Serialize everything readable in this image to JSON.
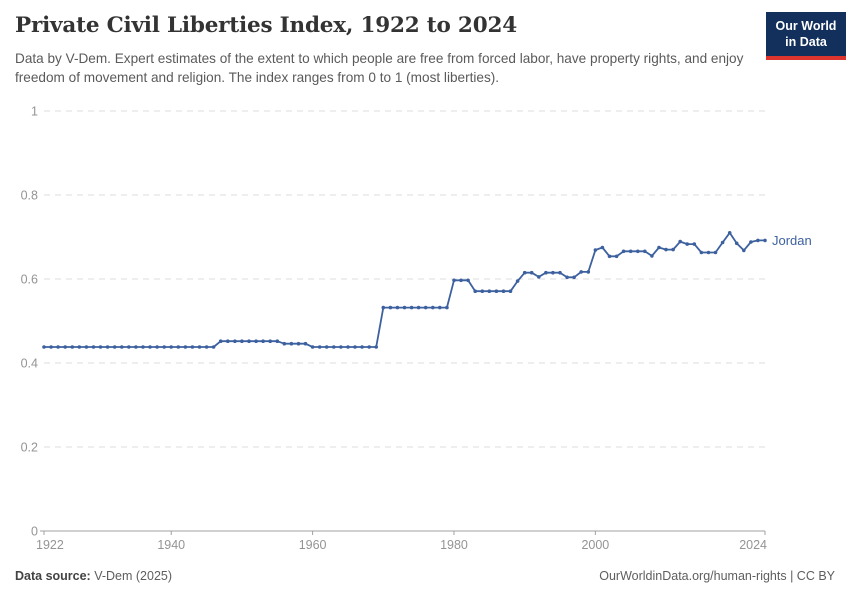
{
  "header": {
    "title": "Private Civil Liberties Index, 1922 to 2024",
    "subtitle": "Data by V-Dem. Expert estimates of the extent to which people are free from forced labor, have property rights, and enjoy freedom of movement and religion. The index ranges from 0 to 1 (most liberties).",
    "logo": {
      "line1": "Our World",
      "line2": "in Data"
    }
  },
  "footer": {
    "source_label": "Data source:",
    "source_value": " V-Dem (2025)",
    "right_text": "OurWorldinData.org/human-rights | CC BY"
  },
  "colors": {
    "series_blue": "#3d619f",
    "logo_navy": "#12305b",
    "logo_red": "#dd352e",
    "gridline": "#dedede",
    "axis": "#a0a0a0",
    "tick_label": "#949494",
    "title_text": "#333333",
    "subtitle_text": "#5a5a5a"
  },
  "chart_data": {
    "type": "line",
    "title": "Private Civil Liberties Index, 1922 to 2024",
    "xlabel": "",
    "ylabel": "",
    "entity_label": "Jordan",
    "legend_position": "end-of-line",
    "grid": "horizontal-dashed",
    "markers": true,
    "xlim": [
      1922,
      2024
    ],
    "ylim": [
      0,
      1
    ],
    "xticks": [
      1922,
      1940,
      1960,
      1980,
      2000,
      2024
    ],
    "yticks": [
      0,
      0.2,
      0.4,
      0.6,
      0.8,
      1
    ],
    "x": [
      1922,
      1923,
      1924,
      1925,
      1926,
      1927,
      1928,
      1929,
      1930,
      1931,
      1932,
      1933,
      1934,
      1935,
      1936,
      1937,
      1938,
      1939,
      1940,
      1941,
      1942,
      1943,
      1944,
      1945,
      1946,
      1947,
      1948,
      1949,
      1950,
      1951,
      1952,
      1953,
      1954,
      1955,
      1956,
      1957,
      1958,
      1959,
      1960,
      1961,
      1962,
      1963,
      1964,
      1965,
      1966,
      1967,
      1968,
      1969,
      1970,
      1971,
      1972,
      1973,
      1974,
      1975,
      1976,
      1977,
      1978,
      1979,
      1980,
      1981,
      1982,
      1983,
      1984,
      1985,
      1986,
      1987,
      1988,
      1989,
      1990,
      1991,
      1992,
      1993,
      1994,
      1995,
      1996,
      1997,
      1998,
      1999,
      2000,
      2001,
      2002,
      2003,
      2004,
      2005,
      2006,
      2007,
      2008,
      2009,
      2010,
      2011,
      2012,
      2013,
      2014,
      2015,
      2016,
      2017,
      2018,
      2019,
      2020,
      2021,
      2022,
      2023,
      2024
    ],
    "series": [
      {
        "name": "Jordan",
        "values": [
          0.438,
          0.438,
          0.438,
          0.438,
          0.438,
          0.438,
          0.438,
          0.438,
          0.438,
          0.438,
          0.438,
          0.438,
          0.438,
          0.438,
          0.438,
          0.438,
          0.438,
          0.438,
          0.438,
          0.438,
          0.438,
          0.438,
          0.438,
          0.438,
          0.438,
          0.452,
          0.452,
          0.452,
          0.452,
          0.452,
          0.452,
          0.452,
          0.452,
          0.452,
          0.446,
          0.446,
          0.446,
          0.446,
          0.438,
          0.438,
          0.438,
          0.438,
          0.438,
          0.438,
          0.438,
          0.438,
          0.438,
          0.438,
          0.532,
          0.532,
          0.532,
          0.532,
          0.532,
          0.532,
          0.532,
          0.532,
          0.532,
          0.532,
          0.597,
          0.597,
          0.597,
          0.571,
          0.571,
          0.571,
          0.571,
          0.571,
          0.571,
          0.595,
          0.615,
          0.615,
          0.605,
          0.615,
          0.615,
          0.615,
          0.604,
          0.604,
          0.617,
          0.617,
          0.669,
          0.675,
          0.654,
          0.654,
          0.666,
          0.666,
          0.666,
          0.666,
          0.655,
          0.675,
          0.67,
          0.67,
          0.689,
          0.683,
          0.683,
          0.663,
          0.663,
          0.663,
          0.687,
          0.71,
          0.685,
          0.668,
          0.688,
          0.692,
          0.692
        ]
      }
    ]
  }
}
